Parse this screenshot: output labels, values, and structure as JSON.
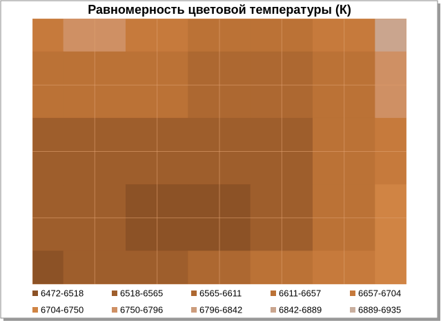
{
  "chart_data": {
    "type": "contour",
    "title": "Равномерность цветовой температуры (К)",
    "levels": [
      6472,
      6518,
      6565,
      6611,
      6657,
      6704,
      6750,
      6796,
      6842,
      6889,
      6935
    ],
    "series": [
      {
        "name": "6472-6518",
        "color": "#8c5226"
      },
      {
        "name": "6518-6565",
        "color": "#9e5e2c"
      },
      {
        "name": "6565-6611",
        "color": "#ad6831"
      },
      {
        "name": "6611-6657",
        "color": "#bb7236"
      },
      {
        "name": "6657-6704",
        "color": "#c67a3c"
      },
      {
        "name": "6704-6750",
        "color": "#d08444"
      },
      {
        "name": "6750-6796",
        "color": "#cf9064"
      },
      {
        "name": "6796-6842",
        "color": "#cc9c7c"
      },
      {
        "name": "6842-6889",
        "color": "#caa58e"
      },
      {
        "name": "6889-6935",
        "color": "#c9ae9e"
      }
    ],
    "z": [
      [
        6700,
        6760,
        6680,
        6640,
        6650,
        6680,
        6880
      ],
      [
        6630,
        6640,
        6620,
        6600,
        6610,
        6650,
        6760
      ],
      [
        6540,
        6560,
        6550,
        6530,
        6540,
        6620,
        6700
      ],
      [
        6530,
        6550,
        6510,
        6500,
        6540,
        6620,
        6710
      ],
      [
        6490,
        6530,
        6560,
        6600,
        6650,
        6680,
        6720
      ]
    ]
  }
}
